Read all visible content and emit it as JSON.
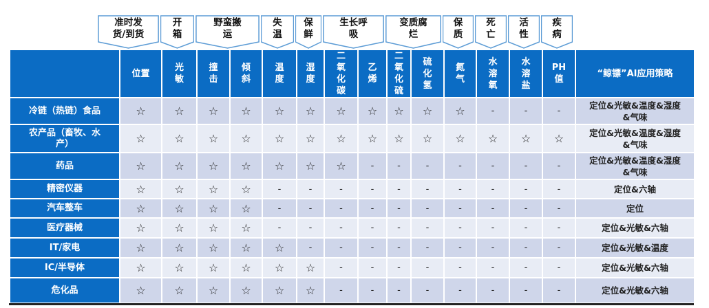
{
  "callouts": [
    {
      "label": "准时发\n货/到货",
      "cols": [
        1
      ]
    },
    {
      "label": "开\n箱",
      "cols": [
        2
      ]
    },
    {
      "label": "野蛮搬\n运",
      "cols": [
        3,
        4
      ]
    },
    {
      "label": "失\n温",
      "cols": [
        5
      ]
    },
    {
      "label": "保\n鲜",
      "cols": [
        6
      ]
    },
    {
      "label": "生长呼\n吸",
      "cols": [
        7,
        8
      ]
    },
    {
      "label": "变质腐\n烂",
      "cols": [
        9,
        10
      ]
    },
    {
      "label": "保\n质",
      "cols": [
        11
      ]
    },
    {
      "label": "死\n亡",
      "cols": [
        12
      ]
    },
    {
      "label": "活\n性",
      "cols": [
        13
      ]
    },
    {
      "label": "疾\n病",
      "cols": [
        14
      ]
    }
  ],
  "columns": [
    "",
    "位置",
    "光\n敏",
    "撞\n击",
    "倾\n斜",
    "温\n度",
    "湿\n度",
    "二\n氧\n化\n碳",
    "乙\n烯",
    "二\n氧\n化\n硫",
    "硫\n化\n氢",
    "氮\n气",
    "水\n溶\n氧",
    "水\n溶\n盐",
    "PH\n值",
    "“鲸镖”AI应用策略"
  ],
  "star_symbol": "☆",
  "dash_symbol": "-",
  "rows": [
    {
      "label": "冷链（热链）食品",
      "stars": 11,
      "strategy": "定位&光敏&温度&湿度\n&气味"
    },
    {
      "label": "农产品（畜牧、水\n产）",
      "stars": 14,
      "strategy": "定位&光敏&温度&湿度\n&气味"
    },
    {
      "label": "药品",
      "stars": 7,
      "strategy": "定位&光敏&温度&湿度\n&气味"
    },
    {
      "label": "精密仪器",
      "stars": 4,
      "strategy": "定位&六轴"
    },
    {
      "label": "汽车整车",
      "stars": 4,
      "strategy": "定位"
    },
    {
      "label": "医疗器械",
      "stars": 4,
      "strategy": "定位&光敏&六轴"
    },
    {
      "label": "IT/家电",
      "stars": 5,
      "strategy": "定位&光敏&温度"
    },
    {
      "label": "IC/半导体",
      "stars": 6,
      "strategy": "定位&光敏&六轴"
    },
    {
      "label": "危化品",
      "stars": 6,
      "strategy": "定位&光敏&六轴"
    }
  ],
  "colors": {
    "header": "#0b6cc4",
    "row_odd": "#cfd6ea",
    "row_even": "#e8ecf5",
    "callout_border": "#5b9bd5"
  }
}
